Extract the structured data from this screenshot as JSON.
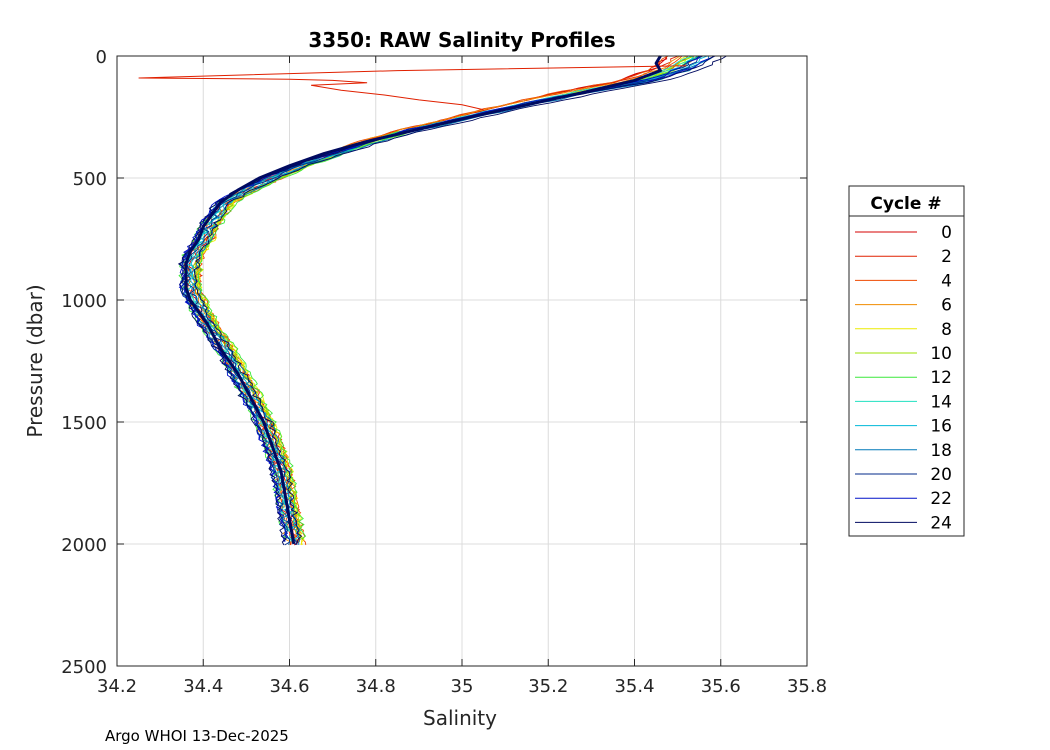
{
  "chart_data": {
    "type": "line",
    "title": "3350: RAW Salinity Profiles",
    "xlabel": "Salinity",
    "ylabel": "Pressure (dbar)",
    "xlim": [
      34.2,
      35.8
    ],
    "ylim": [
      0,
      2500
    ],
    "y_reversed": true,
    "grid": true,
    "xticks": [
      "34.2",
      "34.4",
      "34.6",
      "34.8",
      "35",
      "35.2",
      "35.4",
      "35.6",
      "35.8"
    ],
    "yticks": [
      "0",
      "500",
      "1000",
      "1500",
      "2000",
      "2500"
    ],
    "legend": {
      "title": "Cycle #",
      "placement": "right",
      "entries": [
        "0",
        "2",
        "4",
        "6",
        "8",
        "10",
        "12",
        "14",
        "16",
        "18",
        "20",
        "22",
        "24"
      ],
      "colors": [
        "#d40000",
        "#e02000",
        "#ee4a00",
        "#f08c00",
        "#ecec00",
        "#9ee000",
        "#3ce83c",
        "#20e0c0",
        "#00b8d8",
        "#0078b8",
        "#002a8a",
        "#0010c8",
        "#000a60"
      ]
    },
    "base_profile": {
      "pressure": [
        0,
        50,
        100,
        150,
        200,
        250,
        300,
        350,
        400,
        450,
        500,
        550,
        600,
        650,
        700,
        750,
        800,
        850,
        900,
        950,
        1000,
        1100,
        1200,
        1300,
        1400,
        1500,
        1600,
        1700,
        1800,
        1900,
        2000
      ],
      "salinity": [
        35.52,
        35.48,
        35.4,
        35.25,
        35.12,
        35.0,
        34.88,
        34.78,
        34.7,
        34.62,
        34.56,
        34.5,
        34.45,
        34.43,
        34.41,
        34.4,
        34.38,
        34.37,
        34.37,
        34.37,
        34.38,
        34.41,
        34.45,
        34.48,
        34.51,
        34.54,
        34.56,
        34.58,
        34.59,
        34.6,
        34.61
      ]
    },
    "highlight": {
      "name": "Cycle 24 (bold)",
      "color": "#000a60",
      "pressure": [
        0,
        30,
        60,
        100,
        150,
        200,
        250,
        300,
        350,
        400,
        450,
        500,
        550,
        600,
        650,
        700,
        750,
        800,
        850,
        900,
        950,
        1000,
        1100,
        1200,
        1300,
        1400,
        1500,
        1600,
        1700,
        1800,
        1900,
        2000
      ],
      "salinity": [
        35.46,
        35.45,
        35.46,
        35.4,
        35.28,
        35.15,
        35.02,
        34.9,
        34.78,
        34.68,
        34.6,
        34.53,
        34.48,
        34.44,
        34.42,
        34.4,
        34.39,
        34.37,
        34.36,
        34.36,
        34.36,
        34.37,
        34.41,
        34.44,
        34.48,
        34.51,
        34.54,
        34.56,
        34.58,
        34.59,
        34.6,
        34.61
      ]
    },
    "spike": {
      "name": "Cycle 0 spike",
      "color": "#e02000",
      "pressure": [
        40,
        60,
        80,
        90,
        95,
        100,
        110,
        120,
        140,
        160,
        180,
        200,
        220
      ],
      "salinity": [
        35.52,
        34.85,
        34.45,
        34.25,
        34.6,
        34.7,
        34.78,
        34.65,
        34.72,
        34.82,
        34.9,
        35.0,
        35.05
      ]
    }
  },
  "footer": "Argo WHOI 13-Dec-2025"
}
